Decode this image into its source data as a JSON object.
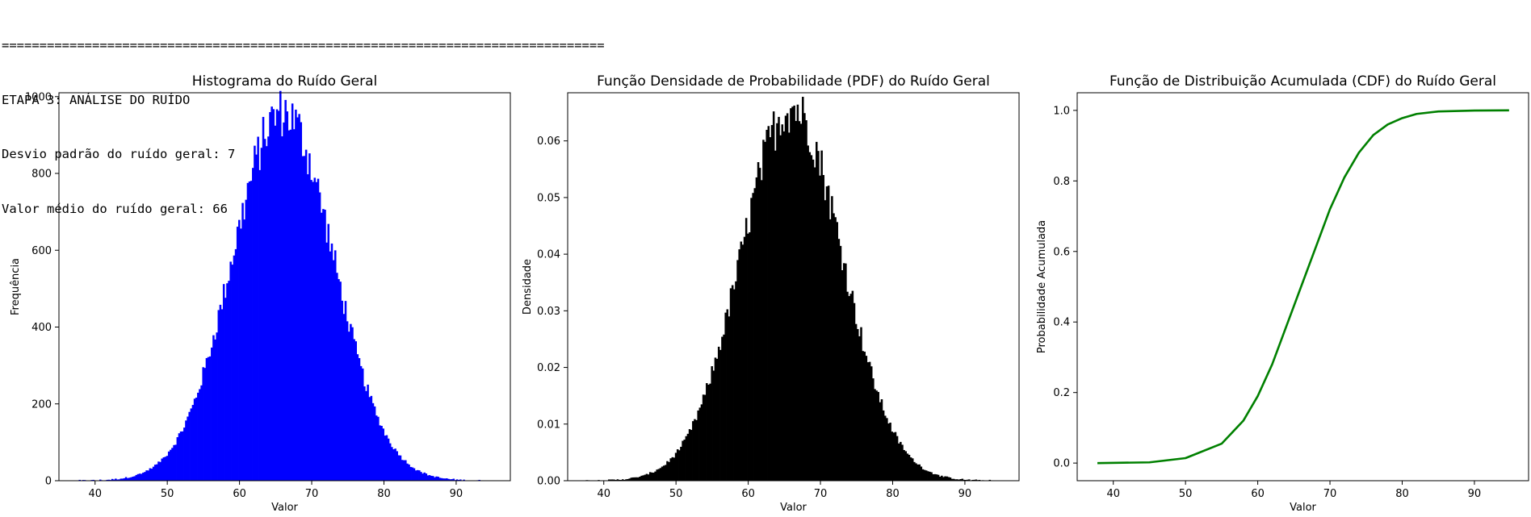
{
  "console": {
    "separator": "================================================================================",
    "stage_title": "ETAPA 3: ANÁLISE DO RUÍDO",
    "std_line": "Desvio padrão do ruído geral: 7",
    "mean_line": "Valor médio do ruído geral: 66"
  },
  "colors": {
    "hist": "#0000ff",
    "pdf": "#000000",
    "cdf": "#008000"
  },
  "chart_data": [
    {
      "type": "bar",
      "title": "Histograma do Ruído Geral",
      "xlabel": "Valor",
      "ylabel": "Frequência",
      "xlim": [
        35,
        97.5
      ],
      "ylim": [
        0,
        1010
      ],
      "xticks": [
        40,
        50,
        60,
        70,
        80,
        90
      ],
      "yticks": [
        0,
        200,
        400,
        600,
        800,
        1000
      ],
      "distribution": {
        "mean": 66,
        "std": 7,
        "peak": 960
      },
      "x_range": [
        37.5,
        94.5
      ],
      "grid": false,
      "color": "blue"
    },
    {
      "type": "bar",
      "title": "Função Densidade de Probabilidade (PDF) do Ruído Geral",
      "xlabel": "Valor",
      "ylabel": "Densidade",
      "xlim": [
        35,
        97.5
      ],
      "ylim": [
        0,
        0.0685
      ],
      "xticks": [
        40,
        50,
        60,
        70,
        80,
        90
      ],
      "yticks": [
        0.0,
        0.01,
        0.02,
        0.03,
        0.04,
        0.05,
        0.06
      ],
      "distribution": {
        "mean": 66,
        "std": 7,
        "peak": 0.066
      },
      "x_range": [
        37.5,
        94.5
      ],
      "grid": false,
      "color": "black"
    },
    {
      "type": "line",
      "title": "Função de Distribuição Acumulada (CDF) do Ruído Geral",
      "xlabel": "Valor",
      "ylabel": "Probabilidade Acumulada",
      "xlim": [
        35,
        97.5
      ],
      "ylim": [
        -0.05,
        1.05
      ],
      "xticks": [
        40,
        50,
        60,
        70,
        80,
        90
      ],
      "yticks": [
        0.0,
        0.2,
        0.4,
        0.6,
        0.8,
        1.0
      ],
      "series": [
        {
          "x": [
            37.8,
            45,
            50,
            55,
            58,
            60,
            62,
            64,
            66,
            68,
            70,
            72,
            74,
            76,
            78,
            80,
            82,
            85,
            90,
            94.8
          ],
          "y": [
            0.0,
            0.002,
            0.014,
            0.055,
            0.12,
            0.19,
            0.28,
            0.39,
            0.5,
            0.61,
            0.72,
            0.81,
            0.88,
            0.93,
            0.96,
            0.978,
            0.99,
            0.997,
            0.9995,
            1.0
          ]
        }
      ],
      "grid": false,
      "color": "green"
    }
  ]
}
